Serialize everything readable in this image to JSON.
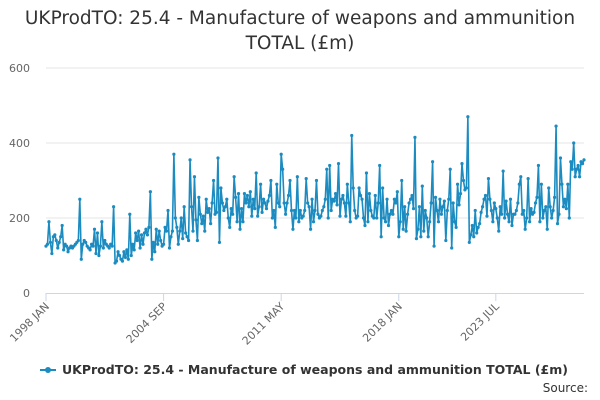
{
  "chart_data": {
    "type": "line",
    "title": "UKProdTO: 25.4 - Manufacture of weapons and ammunition TOTAL (£m)",
    "xlabel": "",
    "ylabel": "",
    "x_range": [
      "1998 JAN",
      "2023 JUL"
    ],
    "ylim": [
      0,
      600
    ],
    "y_ticks": [
      0,
      200,
      400,
      600
    ],
    "x_ticks": [
      "1998 JAN",
      "2004 SEP",
      "2011 MAY",
      "2018 JAN",
      "2023 JUL"
    ],
    "grid": "horizontal",
    "legend_position": "bottom",
    "source": "Source:",
    "series": [
      {
        "name": "UKProdTO: 25.4 - Manufacture of weapons and ammunition TOTAL (£m)",
        "color": "#1b8bc0",
        "frequency": "monthly",
        "start": "1998 JAN",
        "values": [
          125,
          130,
          190,
          135,
          105,
          150,
          155,
          140,
          120,
          135,
          150,
          180,
          115,
          130,
          125,
          110,
          120,
          125,
          120,
          125,
          130,
          135,
          140,
          250,
          90,
          130,
          140,
          135,
          125,
          120,
          115,
          130,
          125,
          170,
          105,
          160,
          100,
          125,
          190,
          120,
          140,
          130,
          125,
          120,
          130,
          125,
          230,
          80,
          85,
          110,
          100,
          90,
          85,
          110,
          95,
          115,
          90,
          210,
          100,
          130,
          115,
          160,
          140,
          165,
          120,
          155,
          130,
          160,
          170,
          155,
          175,
          270,
          90,
          135,
          110,
          170,
          130,
          165,
          140,
          125,
          130,
          175,
          165,
          220,
          120,
          150,
          165,
          370,
          200,
          175,
          130,
          165,
          200,
          145,
          230,
          160,
          150,
          140,
          355,
          230,
          165,
          310,
          195,
          140,
          255,
          210,
          185,
          205,
          165,
          250,
          215,
          225,
          185,
          240,
          300,
          210,
          215,
          360,
          135,
          280,
          240,
          220,
          230,
          250,
          200,
          175,
          225,
          210,
          310,
          255,
          190,
          265,
          170,
          225,
          190,
          265,
          240,
          260,
          230,
          270,
          205,
          250,
          225,
          320,
          205,
          230,
          290,
          215,
          250,
          240,
          225,
          245,
          260,
          300,
          200,
          220,
          175,
          290,
          240,
          230,
          370,
          330,
          240,
          210,
          240,
          260,
          300,
          220,
          170,
          220,
          200,
          310,
          190,
          220,
          200,
          205,
          220,
          305,
          240,
          230,
          170,
          250,
          190,
          220,
          300,
          210,
          200,
          205,
          220,
          230,
          250,
          330,
          200,
          340,
          220,
          250,
          245,
          265,
          235,
          345,
          205,
          250,
          260,
          240,
          205,
          290,
          240,
          190,
          420,
          280,
          220,
          200,
          205,
          280,
          260,
          250,
          200,
          180,
          320,
          190,
          265,
          220,
          205,
          200,
          260,
          200,
          240,
          340,
          150,
          280,
          200,
          190,
          250,
          180,
          210,
          220,
          210,
          250,
          240,
          270,
          150,
          190,
          300,
          170,
          230,
          165,
          210,
          240,
          250,
          260,
          225,
          415,
          145,
          170,
          230,
          150,
          285,
          165,
          220,
          200,
          150,
          190,
          240,
          350,
          125,
          255,
          220,
          190,
          250,
          210,
          230,
          245,
          140,
          220,
          250,
          330,
          120,
          240,
          190,
          175,
          290,
          235,
          265,
          345,
          300,
          275,
          280,
          470,
          135,
          155,
          180,
          150,
          220,
          160,
          175,
          185,
          215,
          230,
          250,
          260,
          205,
          305,
          250,
          220,
          190,
          240,
          225,
          200,
          165,
          230,
          210,
          325,
          200,
          245,
          210,
          190,
          250,
          180,
          210,
          210,
          220,
          240,
          290,
          310,
          210,
          220,
          170,
          200,
          305,
          190,
          225,
          210,
          215,
          240,
          255,
          340,
          190,
          290,
          200,
          220,
          230,
          170,
          280,
          230,
          200,
          220,
          255,
          445,
          185,
          210,
          360,
          290,
          230,
          250,
          225,
          290,
          200,
          350,
          330,
          400,
          310,
          330,
          340,
          310,
          350,
          345,
          355
        ]
      }
    ]
  }
}
